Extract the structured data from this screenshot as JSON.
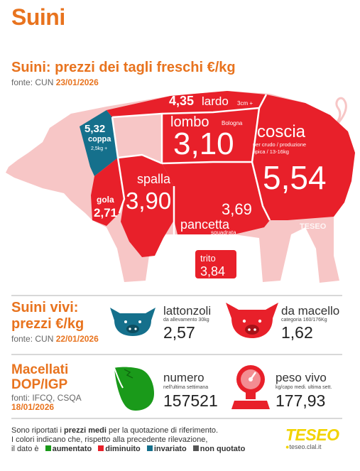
{
  "page_title": "Suini",
  "tagli": {
    "title": "Suini: prezzi dei tagli freschi €/kg",
    "source_label": "fonte: CUN",
    "source_date": "23/01/2026",
    "cuts": {
      "lardo": {
        "value": "4,35",
        "label": "lardo",
        "note": "3cm +"
      },
      "coppa": {
        "value": "5,32",
        "label": "coppa",
        "note": "2,5kg +"
      },
      "lombo": {
        "value": "3,10",
        "label": "lombo",
        "note": "Bologna"
      },
      "coscia": {
        "value": "5,54",
        "label": "coscia",
        "note": "per crudo / produzione tipica / 13-16kg"
      },
      "gola": {
        "value": "2,71",
        "label": "gola"
      },
      "spalla": {
        "value": "3,90",
        "label": "spalla"
      },
      "pancetta": {
        "value": "3,69",
        "label": "pancetta",
        "note": "squadrata"
      },
      "trito": {
        "value": "3,84",
        "label": "trito"
      }
    },
    "watermark": "TESEO"
  },
  "vivi": {
    "title_line1": "Suini vivi:",
    "title_line2": "prezzi €/kg",
    "source_label": "fonte: CUN",
    "source_date": "22/01/2026",
    "lattonzoli": {
      "label": "lattonzoli",
      "note": "da allevamento 30kg",
      "value": "2,57"
    },
    "macello": {
      "label": "da macello",
      "note": "categoria 160/176Kg",
      "value": "1,62"
    }
  },
  "macellati": {
    "title_line1": "Macellati",
    "title_line2": "DOP/IGP",
    "source_label": "fonti: IFCQ, CSQA",
    "source_date": "18/01/2026",
    "numero": {
      "label": "numero",
      "note": "nell'ultima settimana",
      "value": "157521"
    },
    "peso": {
      "label": "peso vivo",
      "note": "kg/capo medi. ultima sett.",
      "value": "177,93"
    }
  },
  "footer": {
    "line1_a": "Sono riportati i",
    "line1_b": "prezzi medi",
    "line1_c": "per la quotazione di riferimento.",
    "line2": "I colori indicano che, rispetto alla precedente rilevazione,",
    "line3": "il dato è",
    "legend": [
      {
        "label": "aumentato",
        "color": "#1a9a1a"
      },
      {
        "label": "diminuito",
        "color": "#e8202a"
      },
      {
        "label": "invariato",
        "color": "#15708c"
      },
      {
        "label": "non quotato",
        "color": "#555555"
      }
    ]
  },
  "brand": {
    "name": "TESEO",
    "url": "teseo.clal.it"
  },
  "colors": {
    "red": "#e8202a",
    "teal": "#15708c",
    "pink": "#f7c6c6",
    "green": "#1a9a1a",
    "orange": "#e8731e"
  }
}
